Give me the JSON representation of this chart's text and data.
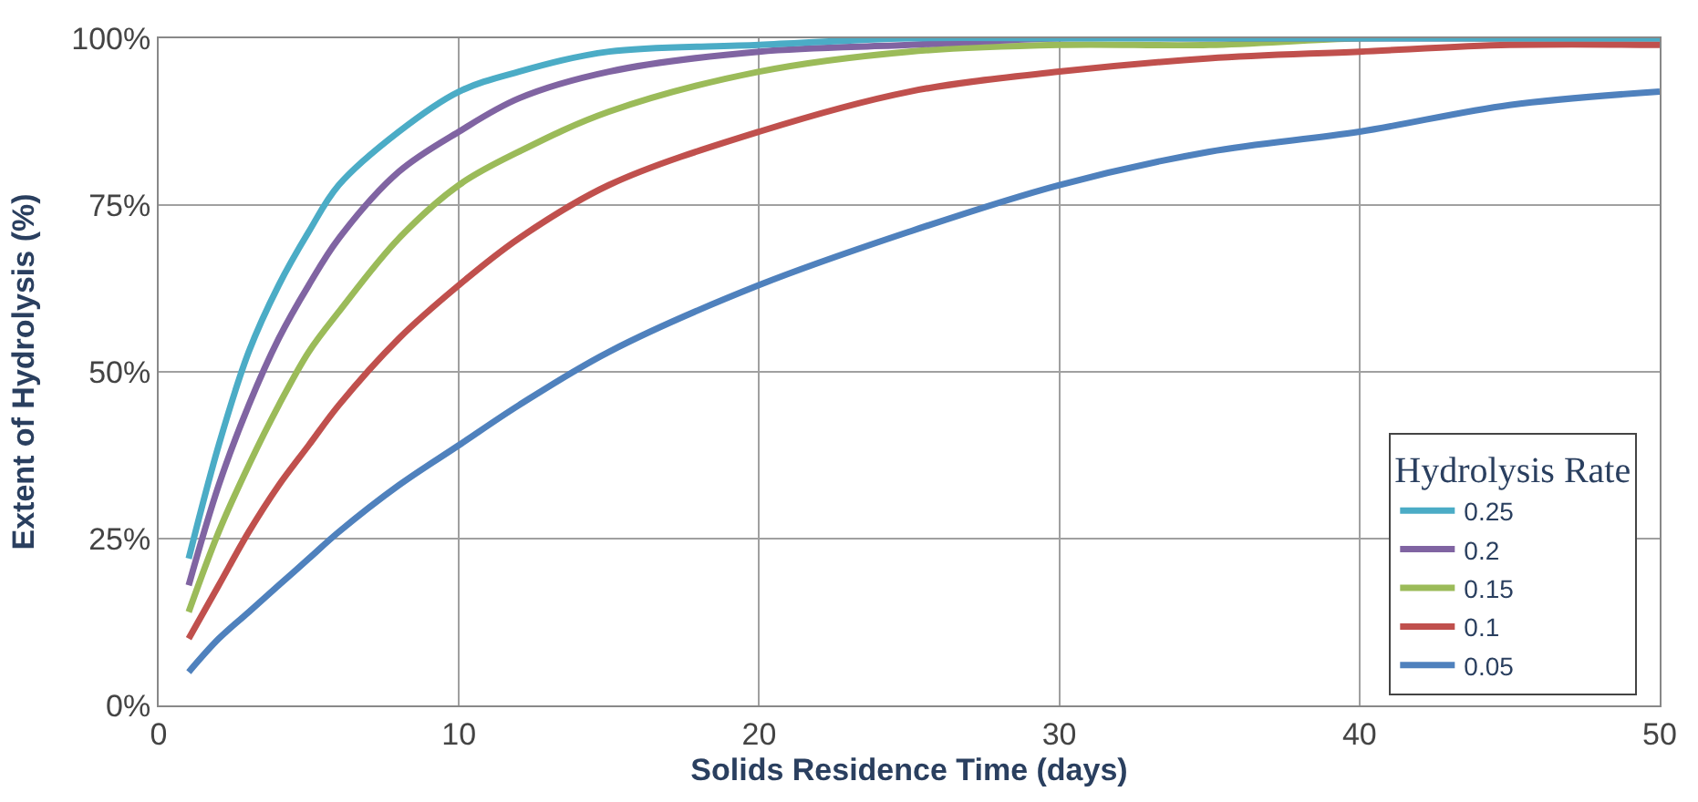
{
  "chart_data": {
    "type": "line",
    "xlabel": "Solids Residence Time (days)",
    "ylabel": "Extent of Hydrolysis (%)",
    "legend_title": "Hydrolysis Rate",
    "x": [
      1,
      2,
      3,
      4,
      5,
      6,
      8,
      10,
      12,
      15,
      20,
      25,
      30,
      35,
      40,
      45,
      50
    ],
    "series": [
      {
        "name": "0.25",
        "color": "#4bacc6",
        "values": [
          22,
          39,
          53,
          63,
          71,
          78,
          86,
          92,
          95,
          98,
          99,
          100,
          100,
          100,
          100,
          100,
          100
        ]
      },
      {
        "name": "0.2",
        "color": "#8064a2",
        "values": [
          18,
          33,
          45,
          55,
          63,
          70,
          80,
          86,
          91,
          95,
          98,
          99,
          100,
          100,
          100,
          100,
          100
        ]
      },
      {
        "name": "0.15",
        "color": "#9bbb59",
        "values": [
          14,
          26,
          36,
          45,
          53,
          59,
          70,
          78,
          83,
          89,
          95,
          98,
          99,
          99,
          100,
          100,
          100
        ]
      },
      {
        "name": "0.1",
        "color": "#c0504d",
        "values": [
          10,
          18,
          26,
          33,
          39,
          45,
          55,
          63,
          70,
          78,
          86,
          92,
          95,
          97,
          98,
          99,
          99
        ]
      },
      {
        "name": "0.05",
        "color": "#4f81bd",
        "values": [
          5,
          10,
          14,
          18,
          22,
          26,
          33,
          39,
          45,
          53,
          63,
          71,
          78,
          83,
          86,
          90,
          92
        ]
      }
    ],
    "xlim": [
      0,
      50
    ],
    "xticks": [
      0,
      10,
      20,
      30,
      40,
      50
    ],
    "ylim": [
      0,
      100
    ],
    "yticks": [
      {
        "value": 0,
        "label": "0%"
      },
      {
        "value": 25,
        "label": "25%"
      },
      {
        "value": 50,
        "label": "50%"
      },
      {
        "value": 75,
        "label": "75%"
      },
      {
        "value": 100,
        "label": "100%"
      }
    ],
    "grid": true,
    "legend": "bottom right",
    "marker": "none",
    "line_style": "solid"
  }
}
